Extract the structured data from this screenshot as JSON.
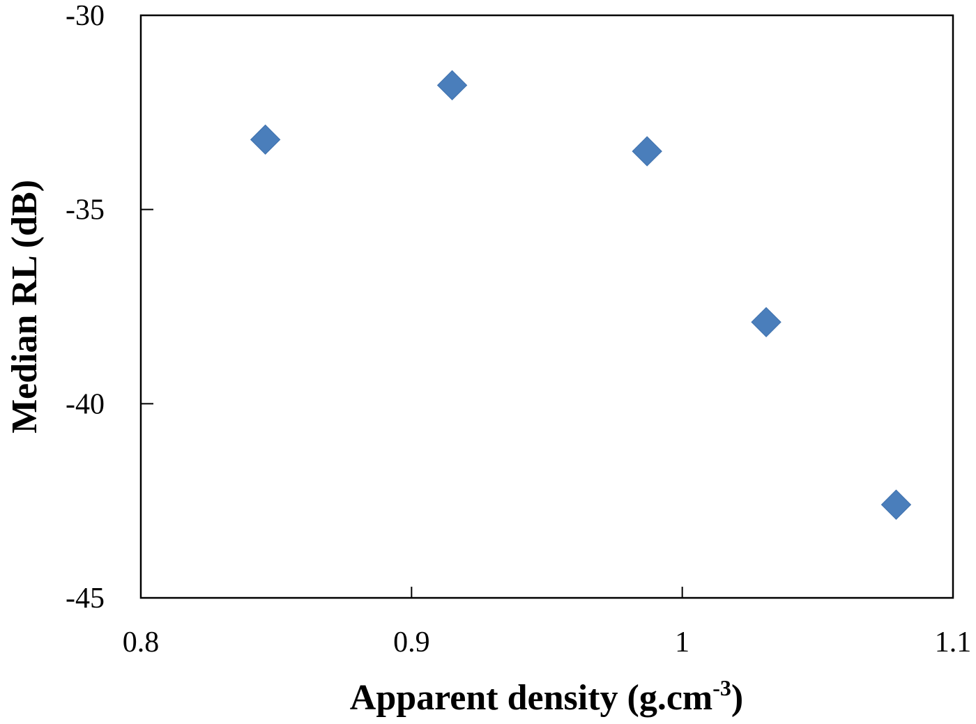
{
  "chart_data": {
    "type": "scatter",
    "title": "",
    "xlabel": "Apparent density (g.cm",
    "xlabel_superscript": "-3",
    "xlabel_close": ")",
    "ylabel": "Median RL (dB)",
    "xlim": [
      0.8,
      1.1
    ],
    "ylim": [
      -45,
      -30
    ],
    "x_ticks": [
      0.8,
      0.9,
      1.0,
      1.1
    ],
    "x_tick_labels": [
      "0.8",
      "0.9",
      "1",
      "1.1"
    ],
    "y_ticks": [
      -30,
      -35,
      -40,
      -45
    ],
    "y_tick_labels": [
      "-30",
      "-35",
      "-40",
      "-45"
    ],
    "grid": false,
    "legend": null,
    "marker": "diamond",
    "marker_color": "#4a7ebb",
    "series": [
      {
        "name": "Median RL",
        "x": [
          0.846,
          0.915,
          0.987,
          1.031,
          1.079
        ],
        "y": [
          -33.2,
          -31.8,
          -33.5,
          -37.9,
          -42.6
        ]
      }
    ]
  }
}
